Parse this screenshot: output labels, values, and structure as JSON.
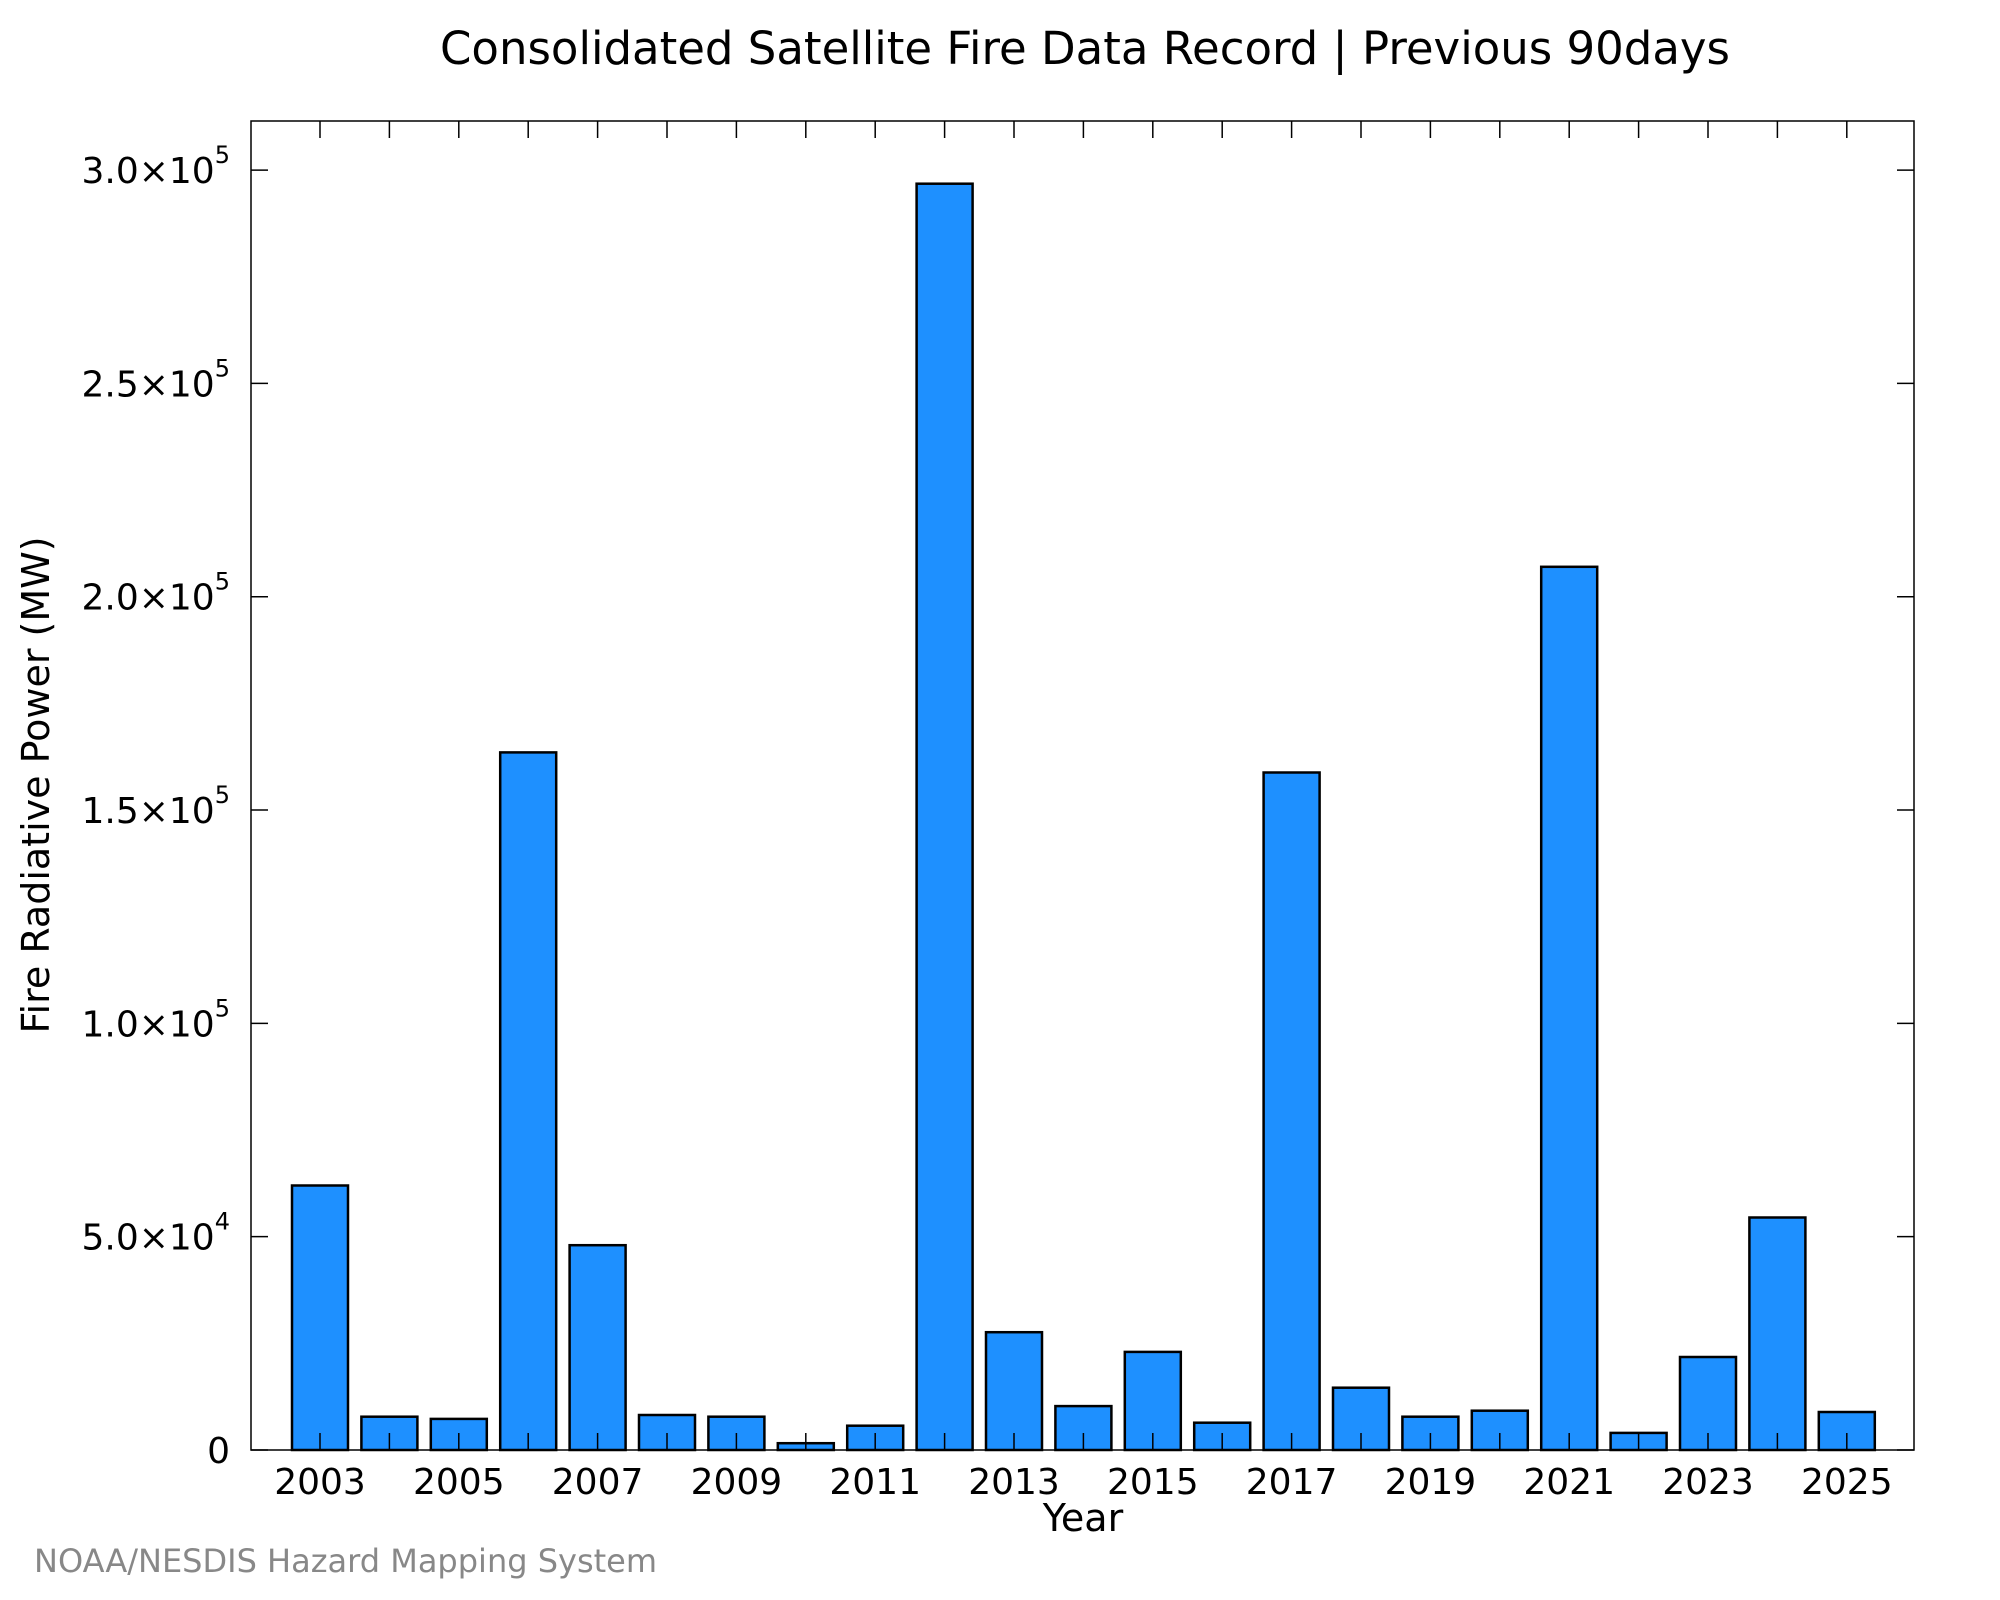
{
  "chart_data": {
    "type": "bar",
    "title": "Consolidated Satellite Fire Data Record | Previous 90days",
    "xlabel": "Year",
    "ylabel": "Fire Radiative Power (MW)",
    "categories": [
      "2003",
      "2004",
      "2005",
      "2006",
      "2007",
      "2008",
      "2009",
      "2010",
      "2011",
      "2012",
      "2013",
      "2014",
      "2015",
      "2016",
      "2017",
      "2018",
      "2019",
      "2020",
      "2021",
      "2022",
      "2023",
      "2024",
      "2025"
    ],
    "values": [
      62000,
      7800,
      7300,
      163500,
      48000,
      8200,
      7800,
      1600,
      5700,
      296800,
      27600,
      10300,
      23000,
      6400,
      158800,
      14600,
      7800,
      9200,
      207000,
      4000,
      21800,
      54500,
      8900
    ],
    "x_tick_labels": [
      "2003",
      "2005",
      "2007",
      "2009",
      "2011",
      "2013",
      "2015",
      "2017",
      "2019",
      "2021",
      "2023",
      "2025"
    ],
    "y_ticks": [
      {
        "value": 0,
        "mantissa": "0",
        "exponent": ""
      },
      {
        "value": 50000,
        "mantissa": "5.0×10",
        "exponent": "4"
      },
      {
        "value": 100000,
        "mantissa": "1.0×10",
        "exponent": "5"
      },
      {
        "value": 150000,
        "mantissa": "1.5×10",
        "exponent": "5"
      },
      {
        "value": 200000,
        "mantissa": "2.0×10",
        "exponent": "5"
      },
      {
        "value": 250000,
        "mantissa": "2.5×10",
        "exponent": "5"
      },
      {
        "value": 300000,
        "mantissa": "3.0×10",
        "exponent": "5"
      }
    ],
    "ylim": [
      0,
      311500
    ],
    "bar_color": "#1e90ff",
    "grid": false,
    "legend": "none"
  },
  "credit": "NOAA/NESDIS Hazard Mapping System"
}
